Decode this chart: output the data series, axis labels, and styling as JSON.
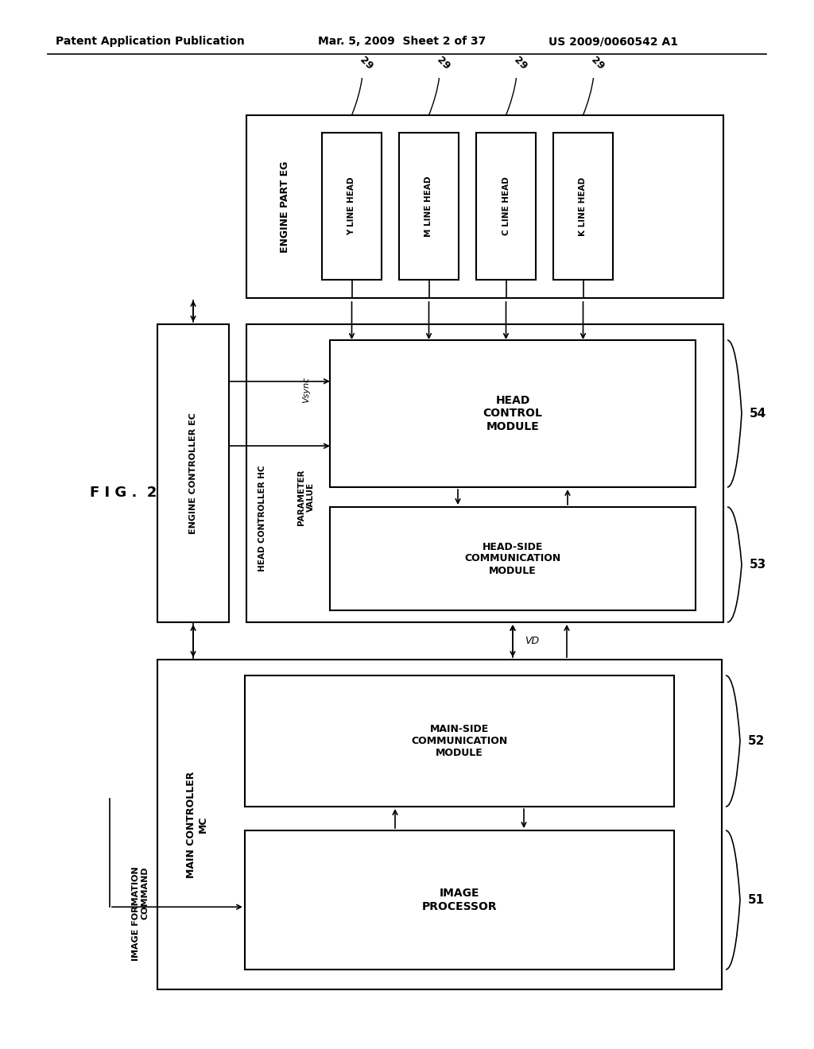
{
  "header_left": "Patent Application Publication",
  "header_mid": "Mar. 5, 2009  Sheet 2 of 37",
  "header_right": "US 2009/0060542 A1",
  "fig_label": "F I G .  2",
  "bg_color": "#ffffff",
  "line_color": "#000000",
  "head_labels": [
    "Y LINE HEAD",
    "M LINE HEAD",
    "C LINE HEAD",
    "K LINE HEAD"
  ]
}
